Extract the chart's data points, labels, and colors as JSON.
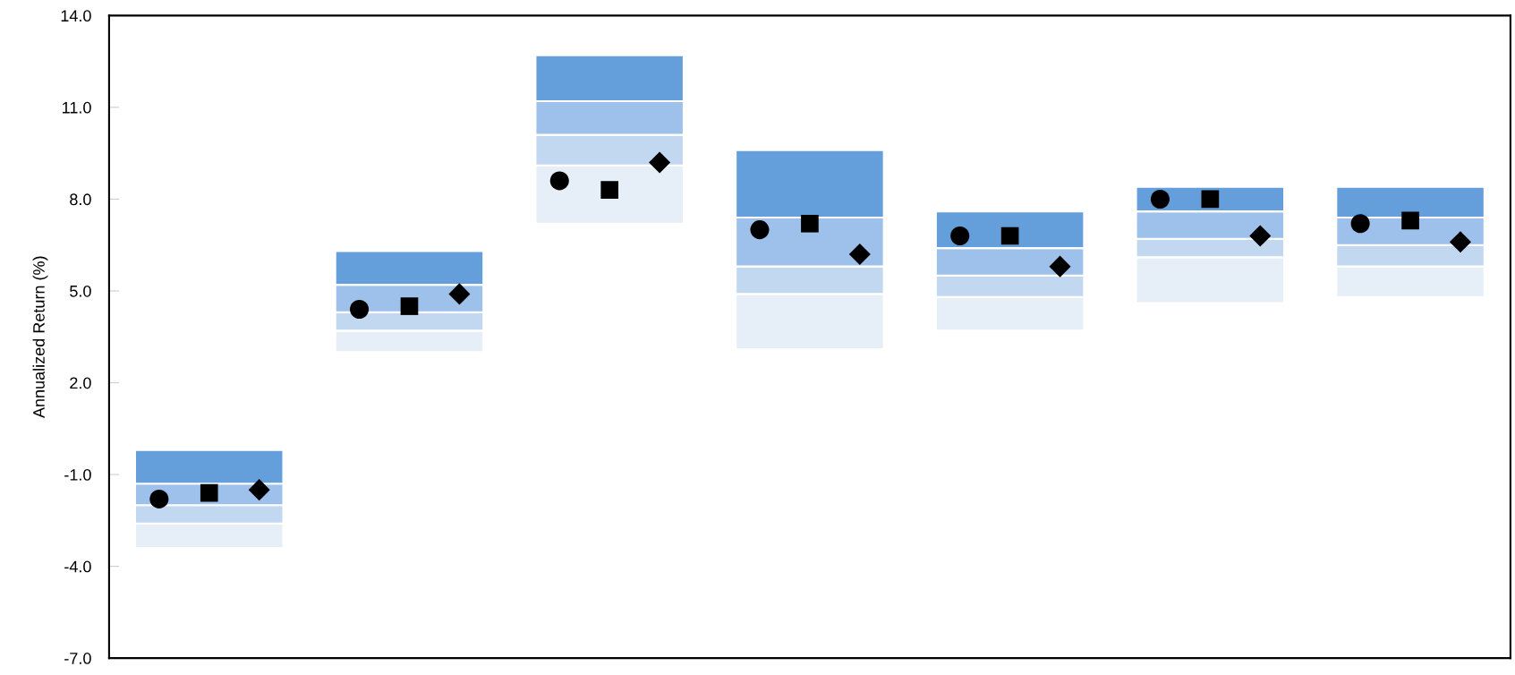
{
  "chart_data": {
    "type": "bar",
    "ylabel": "Annualized Return (%)",
    "categories": [
      null,
      null,
      null,
      null,
      null,
      null,
      null
    ],
    "series": [
      {
        "color": "#e6eef8",
        "base": [
          -3.4,
          3.0,
          7.2,
          3.1,
          3.7,
          4.6,
          4.8
        ],
        "values": [
          0.8,
          0.7,
          1.9,
          1.8,
          1.1,
          1.5,
          1.0
        ]
      },
      {
        "color": "#c2d8f1",
        "base": [
          -2.6,
          3.7,
          9.1,
          4.9,
          4.8,
          6.1,
          5.8
        ],
        "values": [
          0.6,
          0.6,
          1.0,
          0.9,
          0.7,
          0.6,
          0.7
        ]
      },
      {
        "color": "#9dc1ea",
        "base": [
          -2.0,
          4.3,
          10.1,
          5.8,
          5.5,
          6.7,
          6.5
        ],
        "values": [
          0.7,
          0.9,
          1.1,
          1.6,
          0.9,
          0.9,
          0.9
        ]
      },
      {
        "color": "#659fdb",
        "base": [
          -1.3,
          5.2,
          11.2,
          7.4,
          6.4,
          7.6,
          7.4
        ],
        "values": [
          1.1,
          1.1,
          1.5,
          2.2,
          1.2,
          0.8,
          1.0
        ]
      },
      {
        "type": "scatter",
        "marker": "circle",
        "color": "#000000",
        "values": [
          -1.8,
          4.4,
          8.6,
          7.0,
          6.8,
          8.0,
          7.2
        ]
      },
      {
        "type": "scatter",
        "marker": "square",
        "color": "#000000",
        "values": [
          -1.6,
          4.5,
          8.3,
          7.2,
          6.8,
          8.0,
          7.3
        ]
      },
      {
        "type": "scatter",
        "marker": "diamond",
        "color": "#000000",
        "values": [
          -1.5,
          4.9,
          9.2,
          6.2,
          5.8,
          6.8,
          6.6
        ]
      }
    ],
    "ylim": [
      -7,
      14
    ],
    "yticks": [
      {
        "value": -7,
        "label": "-7.0"
      },
      {
        "value": -4,
        "label": "-4.0"
      },
      {
        "value": -1,
        "label": "-1.0"
      },
      {
        "value": 2,
        "label": "2.0"
      },
      {
        "value": 5,
        "label": "5.0"
      },
      {
        "value": 8,
        "label": "8.0"
      },
      {
        "value": 11,
        "label": "11.0"
      },
      {
        "value": 14,
        "label": "14.0"
      }
    ],
    "tick_labels": "y",
    "grid": false
  }
}
